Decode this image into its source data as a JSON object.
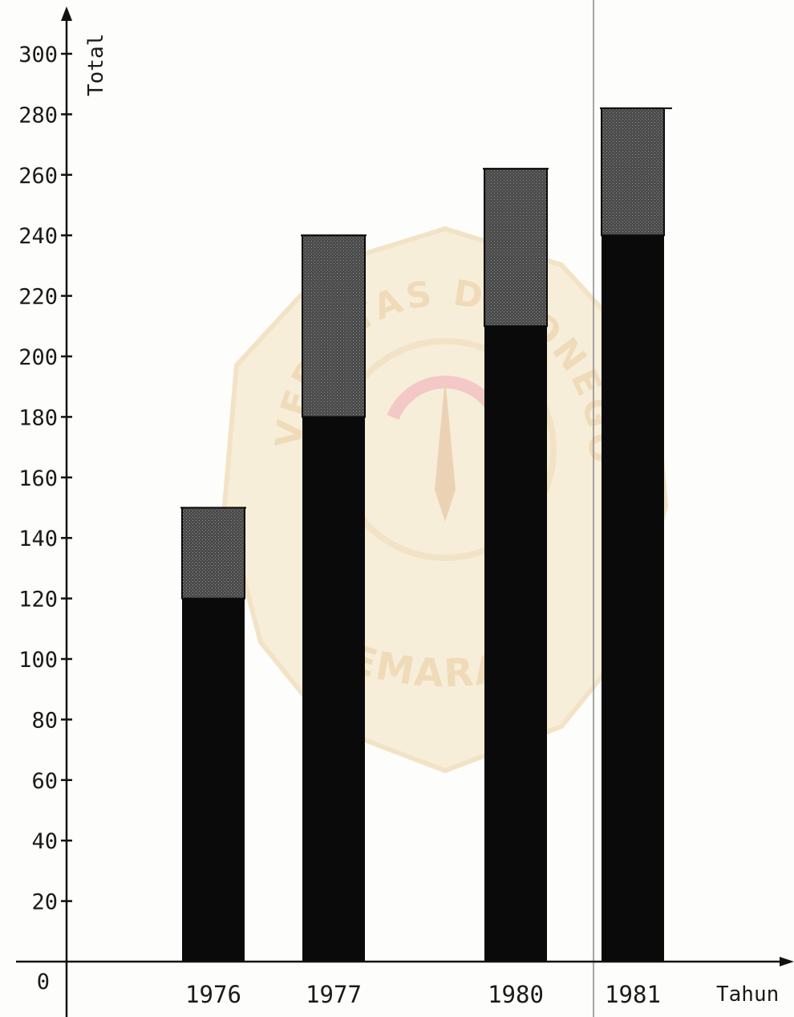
{
  "chart_data": {
    "type": "bar",
    "stacked": true,
    "title": "",
    "xlabel": "Tahun",
    "ylabel": "Total",
    "categories": [
      "1976",
      "1977",
      "1980",
      "1981"
    ],
    "series": [
      {
        "values": [
          120,
          180,
          210,
          240
        ],
        "color": "#0a0a0a"
      },
      {
        "values": [
          30,
          60,
          52,
          42
        ],
        "color": "#3a3a3a"
      }
    ],
    "totals": [
      150,
      240,
      262,
      282
    ],
    "ylim": [
      0,
      300
    ],
    "yticks": [
      0,
      20,
      40,
      60,
      80,
      100,
      120,
      140,
      160,
      180,
      200,
      220,
      240,
      260,
      280,
      300
    ],
    "grid": false,
    "legend": "none"
  },
  "watermark": {
    "top_text": "UNIVERSITAS DIPONEGORO",
    "bottom_text": "SEMARANG",
    "color": "#e2b36a"
  }
}
